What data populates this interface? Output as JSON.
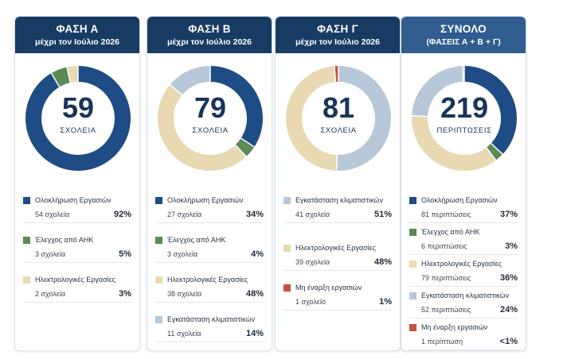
{
  "colors": {
    "dark_blue": "#1e4c84",
    "green": "#5a8a55",
    "beige": "#e8d9b2",
    "light_blue": "#b7c9d9",
    "red": "#c4533f",
    "header_dark": "#173b63",
    "header_total": "#2e5d8e"
  },
  "chart_data": [
    {
      "type": "pie",
      "title": "ΦΑΣΗ Α",
      "subtitle": "μέχρι τον Ιούλιο 2026",
      "total": "59",
      "total_label": "ΣΧΟΛΕΙΑ",
      "slices": [
        {
          "name": "Ολοκλήρωση Εργασιών",
          "count": "54 σχολεία",
          "pct_label": "92%",
          "value": 54,
          "color": "dark_blue"
        },
        {
          "name": "Έλεγχος από ΑΗΚ",
          "count": "3 σχολεία",
          "pct_label": "5%",
          "value": 3,
          "color": "green"
        },
        {
          "name": "Ηλεκτρολογικές Εργασίες",
          "count": "2 σχολεία",
          "pct_label": "3%",
          "value": 2,
          "color": "beige"
        }
      ]
    },
    {
      "type": "pie",
      "title": "ΦΑΣΗ Β",
      "subtitle": "μέχρι τον Ιούλιο 2026",
      "total": "79",
      "total_label": "ΣΧΟΛΕΙΑ",
      "slices": [
        {
          "name": "Ολοκλήρωση Εργασιών",
          "count": "27 σχολεία",
          "pct_label": "34%",
          "value": 27,
          "color": "dark_blue"
        },
        {
          "name": "Έλεγχος από ΑΗΚ",
          "count": "3 σχολεία",
          "pct_label": "4%",
          "value": 3,
          "color": "green"
        },
        {
          "name": "Ηλεκτρολογικές Εργασίες",
          "count": "38 σχολεία",
          "pct_label": "48%",
          "value": 38,
          "color": "beige"
        },
        {
          "name": "Εγκατάσταση κλιματιστικών",
          "count": "11 σχολεία",
          "pct_label": "14%",
          "value": 11,
          "color": "light_blue"
        }
      ]
    },
    {
      "type": "pie",
      "title": "ΦΑΣΗ Γ",
      "subtitle": "μέχρι τον Ιούλιο 2026",
      "total": "81",
      "total_label": "ΣΧΟΛΕΙΑ",
      "slices": [
        {
          "name": "Εγκατάσταση κλιματιστικών",
          "count": "41 σχολεία",
          "pct_label": "51%",
          "value": 41,
          "color": "light_blue"
        },
        {
          "name": "Ηλεκτρολογικές Εργασίες",
          "count": "39 σχολεία",
          "pct_label": "48%",
          "value": 39,
          "color": "beige"
        },
        {
          "name": "Μη έναρξη εργασιών",
          "count": "1 σχολείο",
          "pct_label": "1%",
          "value": 1,
          "color": "red"
        }
      ]
    },
    {
      "type": "pie",
      "title": "ΣΥΝΟΛΟ",
      "subtitle": "(ΦΑΣΕΙΣ Α + Β + Γ)",
      "total": "219",
      "total_label": "ΠΕΡΙΠΤΩΣΕΙΣ",
      "slices": [
        {
          "name": "Ολοκλήρωση Εργασιών",
          "count": "81 περιπτώσεις",
          "pct_label": "37%",
          "value": 81,
          "color": "dark_blue"
        },
        {
          "name": "Έλεγχος από ΑΗΚ",
          "count": "6 περιπτώσεις",
          "pct_label": "3%",
          "value": 6,
          "color": "green"
        },
        {
          "name": "Ηλεκτρολογικές Εργασίες",
          "count": "79 περιπτώσεις",
          "pct_label": "36%",
          "value": 79,
          "color": "beige"
        },
        {
          "name": "Εγκατάσταση κλιματιστικών",
          "count": "52 περιπτώσεις",
          "pct_label": "24%",
          "value": 52,
          "color": "light_blue"
        },
        {
          "name": "Μη έναρξη εργασιών",
          "count": "1 περίπτωση",
          "pct_label": "<1%",
          "value": 1,
          "color": "red"
        }
      ]
    }
  ]
}
